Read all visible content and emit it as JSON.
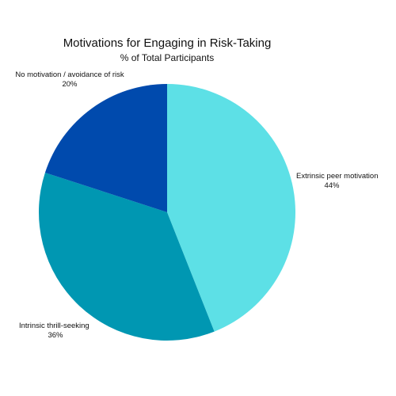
{
  "chart_data": {
    "type": "pie",
    "title": "Motivations for Engaging in Risk-Taking",
    "subtitle": "% of Total Participants",
    "start_angle_deg": 0,
    "direction": "clockwise",
    "slices": [
      {
        "label": "Extrinsic peer motivation",
        "value": 44,
        "value_label": "44%",
        "color": "#5DE0E6"
      },
      {
        "label": "Intrinsic thrill-seeking",
        "value": 36,
        "value_label": "36%",
        "color": "#0097B2"
      },
      {
        "label": "No motivation / avoidance of risk",
        "value": 20,
        "value_label": "20%",
        "color": "#004AAD"
      }
    ]
  }
}
